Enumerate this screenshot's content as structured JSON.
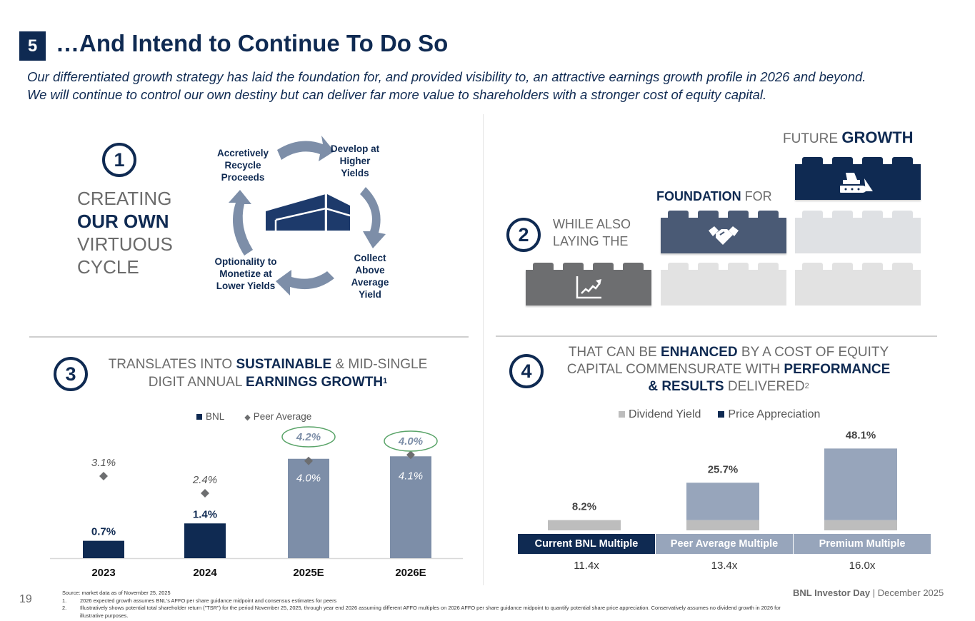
{
  "header": {
    "section_number": "5",
    "title": "…And Intend to Continue To Do So",
    "subtitle_line1": "Our differentiated growth strategy has laid the foundation for, and provided visibility to, an attractive earnings growth profile in 2026 and beyond.",
    "subtitle_line2": "We will continue to control our own destiny but can deliver far more value to shareholders with a stronger cost of equity capital."
  },
  "section1": {
    "number": "1",
    "line1": "CREATING",
    "line2": "OUR OWN",
    "line3": "VIRTUOUS",
    "line4": "CYCLE",
    "cycle_steps": [
      "Develop at Higher Yields",
      "Collect Above Average Yield",
      "Optionality to Monetize at Lower Yields",
      "Accretively Recycle Proceeds"
    ],
    "center_icon": "warehouse-icon"
  },
  "section2": {
    "number": "2",
    "text_line1": "WHILE ALSO",
    "text_line2": "LAYING THE",
    "foundation_bold": "FOUNDATION",
    "foundation_rest": " FOR",
    "future": "FUTURE ",
    "growth": "GROWTH",
    "bricks": [
      {
        "icon": "growth-chart-icon",
        "color": "#6d6e70"
      },
      {
        "icon": "handshake-icon",
        "color": "#4a5a75"
      },
      {
        "icon": "bulldozer-icon",
        "color": "#0f2a52"
      }
    ]
  },
  "section3": {
    "number": "3",
    "heading_p1": "TRANSLATES INTO ",
    "heading_b1": "SUSTAINABLE",
    "heading_p2": " & MID-SINGLE DIGIT ANNUAL ",
    "heading_b2": "EARNINGS GROWTH",
    "heading_sup": "1"
  },
  "section4": {
    "number": "4",
    "heading_p1": "THAT CAN BE ",
    "heading_b1": "ENHANCED",
    "heading_p2": " BY A COST OF EQUITY CAPITAL COMMENSURATE WITH ",
    "heading_b2": "PERFORMANCE & RESULTS",
    "heading_p3": " DELIVERED",
    "heading_sup": "2"
  },
  "chart_data": [
    {
      "type": "bar",
      "title": "Annual Earnings Growth",
      "categories": [
        "2023",
        "2024",
        "2025E",
        "2026E"
      ],
      "series": [
        {
          "name": "BNL",
          "values": [
            0.7,
            1.4,
            4.0,
            4.1
          ],
          "labels": [
            "0.7%",
            "1.4%",
            "4.0%",
            "4.1%"
          ],
          "colors": [
            "#0f2a52",
            "#0f2a52",
            "#7d8ea8",
            "#7d8ea8"
          ],
          "display": "bar"
        },
        {
          "name": "Peer Average",
          "values": [
            3.1,
            2.4,
            4.2,
            4.0
          ],
          "labels": [
            "3.1%",
            "2.4%",
            "4.2%",
            "4.0%"
          ],
          "display": "diamond",
          "color": "#6d6e70",
          "highlighted": [
            false,
            false,
            true,
            true
          ]
        }
      ],
      "legend": [
        "BNL",
        "Peer Average"
      ],
      "legend_position": "top",
      "xlabel": "",
      "ylabel": "",
      "ylim": [
        0,
        4.6
      ],
      "grid": false
    },
    {
      "type": "bar",
      "stacked": true,
      "title": "Potential Total Shareholder Return",
      "categories": [
        "Current BNL Multiple",
        "Peer Average Multiple",
        "Premium Multiple"
      ],
      "multiples": [
        "11.4x",
        "13.4x",
        "16.0x"
      ],
      "totals": [
        8.2,
        25.7,
        48.1
      ],
      "total_labels": [
        "8.2%",
        "25.7%",
        "48.1%"
      ],
      "series": [
        {
          "name": "Dividend Yield",
          "values": [
            8.2,
            8.2,
            8.2
          ],
          "color": "#bdbdbd"
        },
        {
          "name": "Price Appreciation",
          "values": [
            0,
            17.5,
            39.9
          ],
          "color": "#97a5bb"
        }
      ],
      "legend": [
        "Dividend Yield",
        "Price Appreciation"
      ],
      "legend_colors": [
        "#bdbdbd",
        "#0f2a52"
      ],
      "header_colors": [
        "#0f2a52",
        "#97a5bb",
        "#97a5bb"
      ],
      "legend_position": "top",
      "ylim": [
        0,
        50
      ],
      "grid": false
    }
  ],
  "footer": {
    "page_number": "19",
    "source": "Source: market data as of November 25, 2025",
    "notes": [
      {
        "n": "1.",
        "text": "2026 expected growth assumes BNL's AFFO per share guidance midpoint and consensus estimates for peers"
      },
      {
        "n": "2.",
        "text": "Illustratively shows potential total shareholder return (\"TSR\") for the period November 25, 2025, through year end 2026 assuming different AFFO multiples on 2026 AFFO per share guidance midpoint to quantify potential share price appreciation. Conservatively assumes no dividend growth in 2026 for illustrative purposes."
      }
    ],
    "brand_bold": "BNL Investor Day",
    "brand_sep": " | ",
    "brand_date": "December 2025"
  }
}
